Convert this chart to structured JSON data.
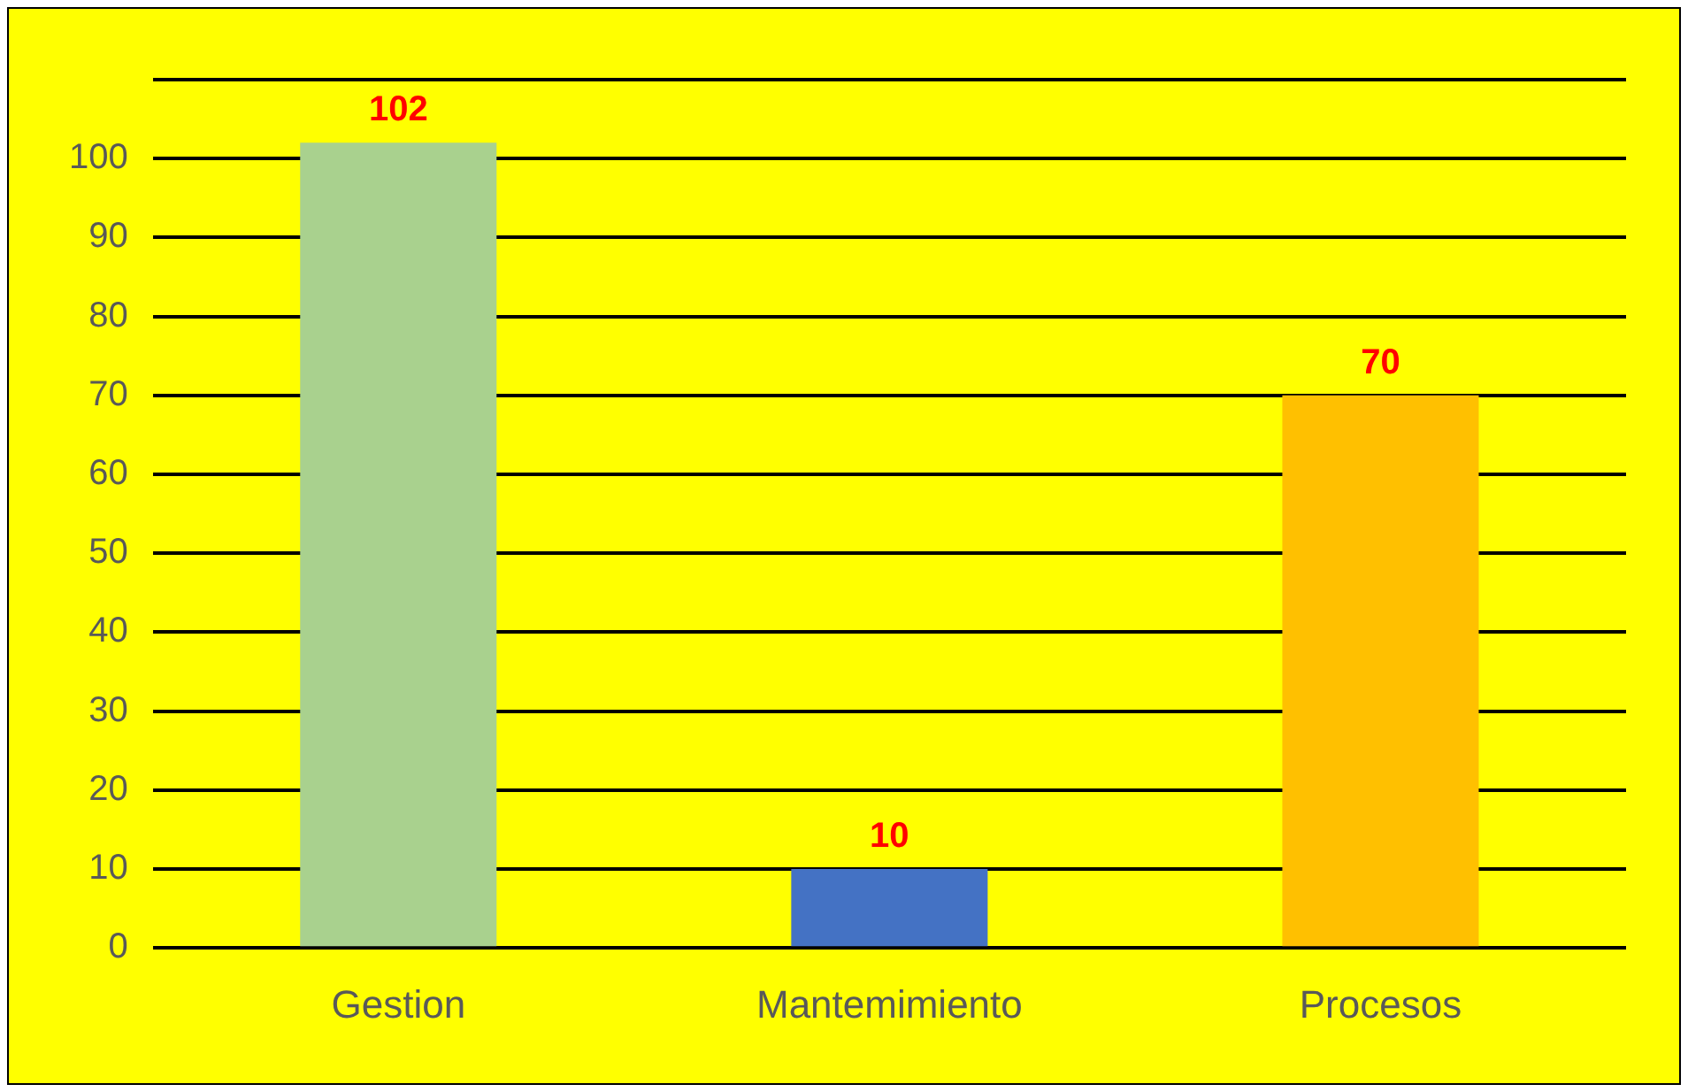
{
  "chart_data": {
    "type": "bar",
    "categories": [
      "Gestion",
      "Mantemimiento",
      "Procesos"
    ],
    "values": [
      102,
      10,
      70
    ],
    "colors": [
      "#a9d18e",
      "#4472c4",
      "#ffc000"
    ],
    "ylim": [
      0,
      110
    ],
    "yticks": [
      0,
      10,
      20,
      30,
      40,
      50,
      60,
      70,
      80,
      90,
      100,
      {
        "value": 110,
        "label": null
      }
    ],
    "grid": "y",
    "data_labels": true
  }
}
